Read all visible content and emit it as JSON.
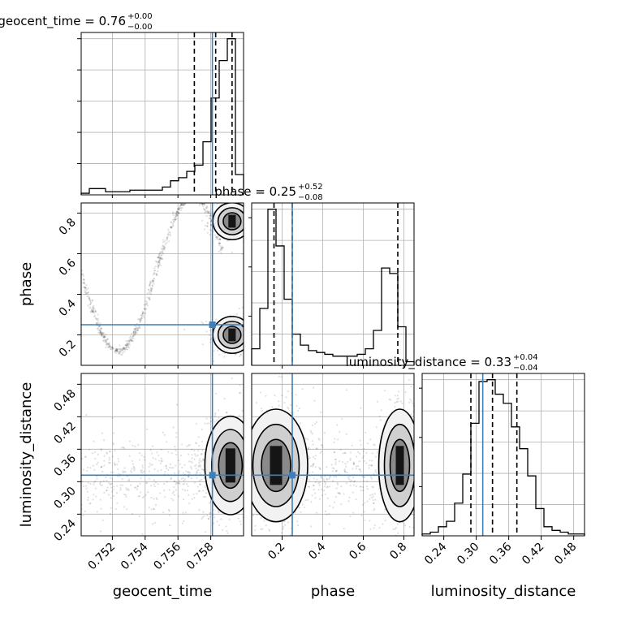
{
  "chart_data": {
    "type": "corner",
    "truth_color": "#3f7fb8",
    "parameters": [
      {
        "name": "geocent_time",
        "label": "geocent_time",
        "range": [
          0.7501,
          0.76
        ],
        "ticks": [
          0.752,
          0.754,
          0.756,
          0.758
        ],
        "tick_labels": [
          "0.752",
          "0.754",
          "0.756",
          "0.758"
        ],
        "truth": 0.7581,
        "quantiles": [
          0.757,
          0.7583,
          0.7593
        ],
        "title": {
          "main": "geocent_time = 0.76",
          "sup": "+0.00",
          "sub": "−0.00"
        },
        "hist": [
          0.01,
          0.04,
          0.04,
          0.02,
          0.02,
          0.02,
          0.03,
          0.03,
          0.03,
          0.03,
          0.05,
          0.09,
          0.11,
          0.15,
          0.19,
          0.34,
          0.62,
          0.86,
          1.0,
          0.13
        ]
      },
      {
        "name": "phase",
        "label": "phase",
        "range": [
          0.05,
          0.85
        ],
        "ticks": [
          0.2,
          0.4,
          0.6,
          0.8
        ],
        "tick_labels": [
          "0.2",
          "0.4",
          "0.6",
          "0.8"
        ],
        "truth": 0.25,
        "quantiles": [
          0.16,
          0.25,
          0.77
        ],
        "title": {
          "main": "phase = 0.25",
          "sup": "+0.52",
          "sub": "−0.08"
        },
        "hist": [
          0.09,
          0.31,
          0.85,
          0.65,
          0.36,
          0.17,
          0.11,
          0.08,
          0.07,
          0.06,
          0.05,
          0.05,
          0.05,
          0.06,
          0.09,
          0.19,
          0.53,
          0.5,
          0.21,
          0.02
        ]
      },
      {
        "name": "luminosity_distance",
        "label": "luminosity_distance",
        "range": [
          0.2,
          0.5
        ],
        "ticks": [
          0.24,
          0.3,
          0.36,
          0.42,
          0.48
        ],
        "tick_labels": [
          "0.24",
          "0.30",
          "0.36",
          "0.42",
          "0.48"
        ],
        "truth": 0.312,
        "quantiles": [
          0.29,
          0.33,
          0.375
        ],
        "title": {
          "main": "luminosity_distance = 0.33",
          "sup": "+0.04",
          "sub": "−0.04"
        },
        "hist": [
          0.01,
          0.02,
          0.05,
          0.08,
          0.18,
          0.34,
          0.62,
          0.85,
          0.86,
          0.78,
          0.73,
          0.6,
          0.48,
          0.33,
          0.15,
          0.05,
          0.03,
          0.02,
          0.01,
          0.01
        ]
      }
    ],
    "clusters": {
      "phase_vs_geocent_time": [
        {
          "xc": 0.7593,
          "yc": 0.2,
          "sx": 0.00045,
          "sy": 0.035,
          "w": 0.3
        },
        {
          "xc": 0.7593,
          "yc": 0.76,
          "sx": 0.00045,
          "sy": 0.035,
          "w": 0.28
        }
      ],
      "luminosity_distance_vs_geocent_time": [
        {
          "xc": 0.7592,
          "yc": 0.33,
          "sx": 0.0006,
          "sy": 0.035,
          "w": 0.55
        }
      ],
      "luminosity_distance_vs_phase": [
        {
          "xc": 0.17,
          "yc": 0.33,
          "sx": 0.06,
          "sy": 0.04,
          "w": 0.55
        },
        {
          "xc": 0.78,
          "yc": 0.33,
          "sx": 0.04,
          "sy": 0.04,
          "w": 0.35
        }
      ]
    }
  }
}
